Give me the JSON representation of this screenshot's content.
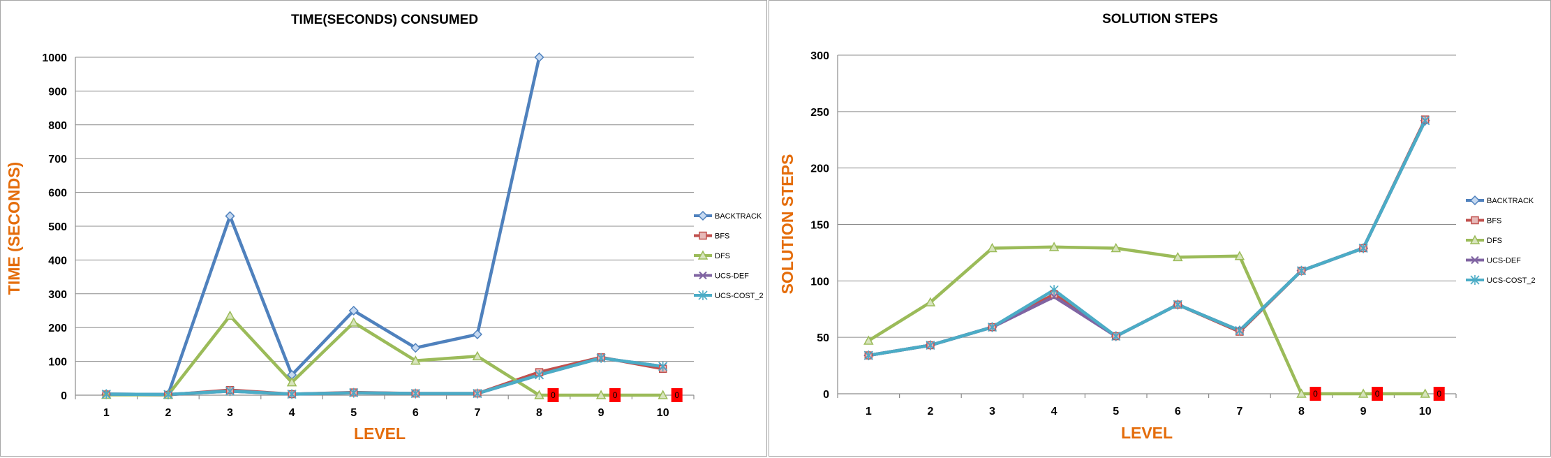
{
  "colors": {
    "BACKTRACK": "#4F81BD",
    "BFS": "#C0504D",
    "DFS": "#9BBB59",
    "UCS-DEF": "#8064A2",
    "UCS-COST_2": "#4BACC6",
    "zero_label_bg": "#FF0000",
    "axis_title": "#E46C0A"
  },
  "chart_data": [
    {
      "type": "line",
      "title": "TIME(SECONDS) CONSUMED",
      "xlabel": "LEVEL",
      "ylabel": "TIME (SECONDS)",
      "ylim": [
        0,
        1000
      ],
      "yticks": [
        "0",
        "100",
        "200",
        "300",
        "400",
        "500",
        "600",
        "700",
        "800",
        "900",
        "1000"
      ],
      "categories": [
        "1",
        "2",
        "3",
        "4",
        "5",
        "6",
        "7",
        "8",
        "9",
        "10"
      ],
      "grid": true,
      "legend": "right",
      "series": [
        {
          "name": "BACKTRACK",
          "marker": "diamond",
          "values": [
            3,
            2,
            530,
            60,
            250,
            140,
            180,
            1000,
            null,
            null
          ]
        },
        {
          "name": "BFS",
          "marker": "square",
          "values": [
            2,
            1,
            15,
            3,
            8,
            5,
            5,
            68,
            112,
            78
          ]
        },
        {
          "name": "DFS",
          "marker": "triangle",
          "values": [
            1,
            1,
            235,
            38,
            215,
            102,
            115,
            0,
            0,
            0
          ]
        },
        {
          "name": "UCS-DEF",
          "marker": "x",
          "values": [
            3,
            2,
            12,
            3,
            7,
            5,
            5,
            60,
            110,
            85
          ]
        },
        {
          "name": "UCS-COST_2",
          "marker": "star",
          "values": [
            3,
            2,
            12,
            3,
            7,
            5,
            5,
            60,
            110,
            85
          ]
        }
      ],
      "zero_labels": [
        {
          "category": "8",
          "text": "0"
        },
        {
          "category": "9",
          "text": "0"
        },
        {
          "category": "10",
          "text": "0"
        }
      ]
    },
    {
      "type": "line",
      "title": "SOLUTION STEPS",
      "xlabel": "LEVEL",
      "ylabel": "SOLUTION STEPS",
      "ylim": [
        0,
        300
      ],
      "yticks": [
        "0",
        "50",
        "100",
        "150",
        "200",
        "250",
        "300"
      ],
      "categories": [
        "1",
        "2",
        "3",
        "4",
        "5",
        "6",
        "7",
        "8",
        "9",
        "10"
      ],
      "grid": true,
      "legend": "right",
      "series": [
        {
          "name": "BACKTRACK",
          "marker": "diamond",
          "values": [
            34,
            43,
            59,
            88,
            51,
            79,
            56,
            109,
            129,
            242
          ]
        },
        {
          "name": "BFS",
          "marker": "square",
          "values": [
            34,
            43,
            59,
            88,
            51,
            79,
            55,
            109,
            129,
            243
          ]
        },
        {
          "name": "DFS",
          "marker": "triangle",
          "values": [
            47,
            81,
            129,
            130,
            129,
            121,
            122,
            0,
            0,
            0
          ]
        },
        {
          "name": "UCS-DEF",
          "marker": "x",
          "values": [
            34,
            43,
            59,
            86,
            51,
            79,
            56,
            109,
            129,
            242
          ]
        },
        {
          "name": "UCS-COST_2",
          "marker": "star",
          "values": [
            34,
            43,
            59,
            92,
            51,
            79,
            56,
            109,
            129,
            242
          ]
        }
      ],
      "zero_labels": [
        {
          "category": "8",
          "text": "0"
        },
        {
          "category": "9",
          "text": "0"
        },
        {
          "category": "10",
          "text": "0"
        }
      ]
    }
  ]
}
